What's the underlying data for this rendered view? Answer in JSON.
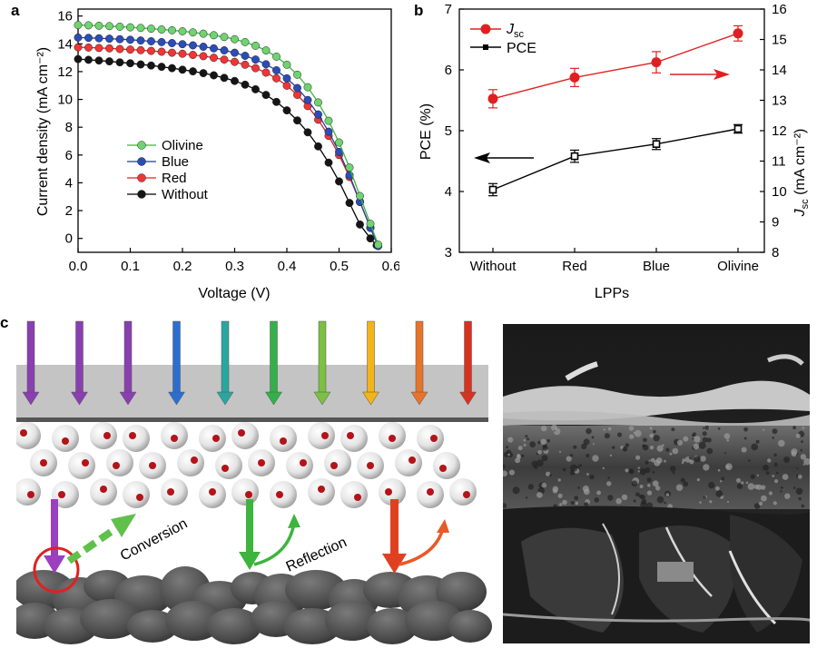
{
  "panels": {
    "a": "a",
    "b": "b",
    "c": "c"
  },
  "chart_data": [
    {
      "type": "line",
      "panel": "a",
      "xlabel": "Voltage (V)",
      "ylabel": "Current density (mA cm⁻²)",
      "xlim": [
        0.0,
        0.6
      ],
      "ylim": [
        -1,
        16.5
      ],
      "xticks": [
        "0.0",
        "0.1",
        "0.2",
        "0.3",
        "0.4",
        "0.5",
        "0.6"
      ],
      "yticks": [
        "0",
        "2",
        "4",
        "6",
        "8",
        "10",
        "12",
        "14",
        "16"
      ],
      "legend_position": "center-left",
      "series": [
        {
          "name": "Olivine",
          "color": "#3fb53f",
          "marker_color": "#6fd36f",
          "points": [
            [
              0.0,
              15.35
            ],
            [
              0.02,
              15.33
            ],
            [
              0.04,
              15.3
            ],
            [
              0.06,
              15.27
            ],
            [
              0.08,
              15.23
            ],
            [
              0.1,
              15.19
            ],
            [
              0.12,
              15.14
            ],
            [
              0.14,
              15.09
            ],
            [
              0.16,
              15.03
            ],
            [
              0.18,
              14.97
            ],
            [
              0.2,
              14.9
            ],
            [
              0.22,
              14.82
            ],
            [
              0.24,
              14.73
            ],
            [
              0.26,
              14.62
            ],
            [
              0.28,
              14.49
            ],
            [
              0.3,
              14.33
            ],
            [
              0.32,
              14.12
            ],
            [
              0.34,
              13.86
            ],
            [
              0.36,
              13.52
            ],
            [
              0.38,
              13.08
            ],
            [
              0.4,
              12.5
            ],
            [
              0.42,
              11.78
            ],
            [
              0.44,
              10.88
            ],
            [
              0.46,
              9.78
            ],
            [
              0.48,
              8.46
            ],
            [
              0.5,
              6.9
            ],
            [
              0.52,
              5.1
            ],
            [
              0.54,
              3.05
            ],
            [
              0.56,
              1.05
            ],
            [
              0.575,
              -0.45
            ]
          ]
        },
        {
          "name": "Blue",
          "color": "#1f3f9f",
          "marker_color": "#2a4db8",
          "points": [
            [
              0.0,
              14.45
            ],
            [
              0.02,
              14.43
            ],
            [
              0.04,
              14.4
            ],
            [
              0.06,
              14.37
            ],
            [
              0.08,
              14.33
            ],
            [
              0.1,
              14.29
            ],
            [
              0.12,
              14.24
            ],
            [
              0.14,
              14.18
            ],
            [
              0.16,
              14.12
            ],
            [
              0.18,
              14.05
            ],
            [
              0.2,
              13.97
            ],
            [
              0.22,
              13.89
            ],
            [
              0.24,
              13.79
            ],
            [
              0.26,
              13.67
            ],
            [
              0.28,
              13.53
            ],
            [
              0.3,
              13.36
            ],
            [
              0.32,
              13.14
            ],
            [
              0.34,
              12.87
            ],
            [
              0.36,
              12.53
            ],
            [
              0.38,
              12.09
            ],
            [
              0.4,
              11.52
            ],
            [
              0.42,
              10.82
            ],
            [
              0.44,
              9.96
            ],
            [
              0.46,
              8.92
            ],
            [
              0.48,
              7.68
            ],
            [
              0.5,
              6.22
            ],
            [
              0.52,
              4.55
            ],
            [
              0.54,
              2.65
            ],
            [
              0.56,
              0.75
            ],
            [
              0.575,
              -0.55
            ]
          ]
        },
        {
          "name": "Red",
          "color": "#e02020",
          "marker_color": "#f03535",
          "points": [
            [
              0.0,
              13.75
            ],
            [
              0.02,
              13.73
            ],
            [
              0.04,
              13.7
            ],
            [
              0.06,
              13.67
            ],
            [
              0.08,
              13.63
            ],
            [
              0.1,
              13.59
            ],
            [
              0.12,
              13.54
            ],
            [
              0.14,
              13.49
            ],
            [
              0.16,
              13.43
            ],
            [
              0.18,
              13.36
            ],
            [
              0.2,
              13.29
            ],
            [
              0.22,
              13.2
            ],
            [
              0.24,
              13.11
            ],
            [
              0.26,
              13.0
            ],
            [
              0.28,
              12.86
            ],
            [
              0.3,
              12.7
            ],
            [
              0.32,
              12.5
            ],
            [
              0.34,
              12.25
            ],
            [
              0.36,
              11.93
            ],
            [
              0.38,
              11.52
            ],
            [
              0.4,
              10.99
            ],
            [
              0.42,
              10.33
            ],
            [
              0.44,
              9.52
            ],
            [
              0.46,
              8.54
            ],
            [
              0.48,
              7.38
            ],
            [
              0.5,
              6.0
            ],
            [
              0.52,
              4.42
            ],
            [
              0.54,
              2.62
            ],
            [
              0.56,
              0.78
            ],
            [
              0.575,
              -0.55
            ]
          ]
        },
        {
          "name": "Without",
          "color": "#000000",
          "marker_color": "#151515",
          "points": [
            [
              0.0,
              12.9
            ],
            [
              0.02,
              12.85
            ],
            [
              0.04,
              12.8
            ],
            [
              0.06,
              12.74
            ],
            [
              0.08,
              12.67
            ],
            [
              0.1,
              12.6
            ],
            [
              0.12,
              12.52
            ],
            [
              0.14,
              12.44
            ],
            [
              0.16,
              12.35
            ],
            [
              0.18,
              12.25
            ],
            [
              0.2,
              12.14
            ],
            [
              0.22,
              12.02
            ],
            [
              0.24,
              11.89
            ],
            [
              0.26,
              11.73
            ],
            [
              0.28,
              11.55
            ],
            [
              0.3,
              11.33
            ],
            [
              0.32,
              11.06
            ],
            [
              0.34,
              10.73
            ],
            [
              0.36,
              10.32
            ],
            [
              0.38,
              9.82
            ],
            [
              0.4,
              9.21
            ],
            [
              0.42,
              8.49
            ],
            [
              0.44,
              7.63
            ],
            [
              0.46,
              6.62
            ],
            [
              0.48,
              5.45
            ],
            [
              0.5,
              4.1
            ],
            [
              0.52,
              2.55
            ],
            [
              0.54,
              1.0
            ],
            [
              0.56,
              0.0
            ],
            [
              0.572,
              -0.5
            ]
          ]
        }
      ]
    },
    {
      "type": "line",
      "panel": "b",
      "xlabel": "LPPs",
      "ylabel_left": "PCE (%)",
      "ylabel_right": "J",
      "ylabel_right_sub": "sc",
      "ylabel_right_unit": " (mA cm⁻²)",
      "categories": [
        "Without",
        "Red",
        "Blue",
        "Olivine"
      ],
      "y_left_lim": [
        3,
        7
      ],
      "y_left_ticks": [
        "3",
        "4",
        "5",
        "6",
        "7"
      ],
      "y_right_lim": [
        8,
        16
      ],
      "y_right_ticks": [
        "8",
        "9",
        "10",
        "11",
        "12",
        "13",
        "14",
        "15",
        "16"
      ],
      "legend_position": "top-left",
      "series": [
        {
          "name": "J",
          "name_sub": "sc",
          "axis": "right",
          "color": "#e02020",
          "values": [
            13.05,
            13.75,
            14.25,
            15.2
          ],
          "errors": [
            0.3,
            0.3,
            0.35,
            0.25
          ]
        },
        {
          "name": "PCE",
          "axis": "left",
          "color": "#000000",
          "values": [
            4.03,
            4.58,
            4.78,
            5.03
          ],
          "errors": [
            0.1,
            0.1,
            0.09,
            0.07
          ]
        }
      ]
    }
  ],
  "schematic": {
    "label_conversion": "Conversion",
    "label_reflection": "Reflection",
    "arrow_colors": [
      "#8a3fb0",
      "#8a3fb0",
      "#8a3fb0",
      "#2a6fd0",
      "#2aa6a0",
      "#34b04a",
      "#7cc043",
      "#f2b418",
      "#e8742a",
      "#d8321e"
    ]
  }
}
